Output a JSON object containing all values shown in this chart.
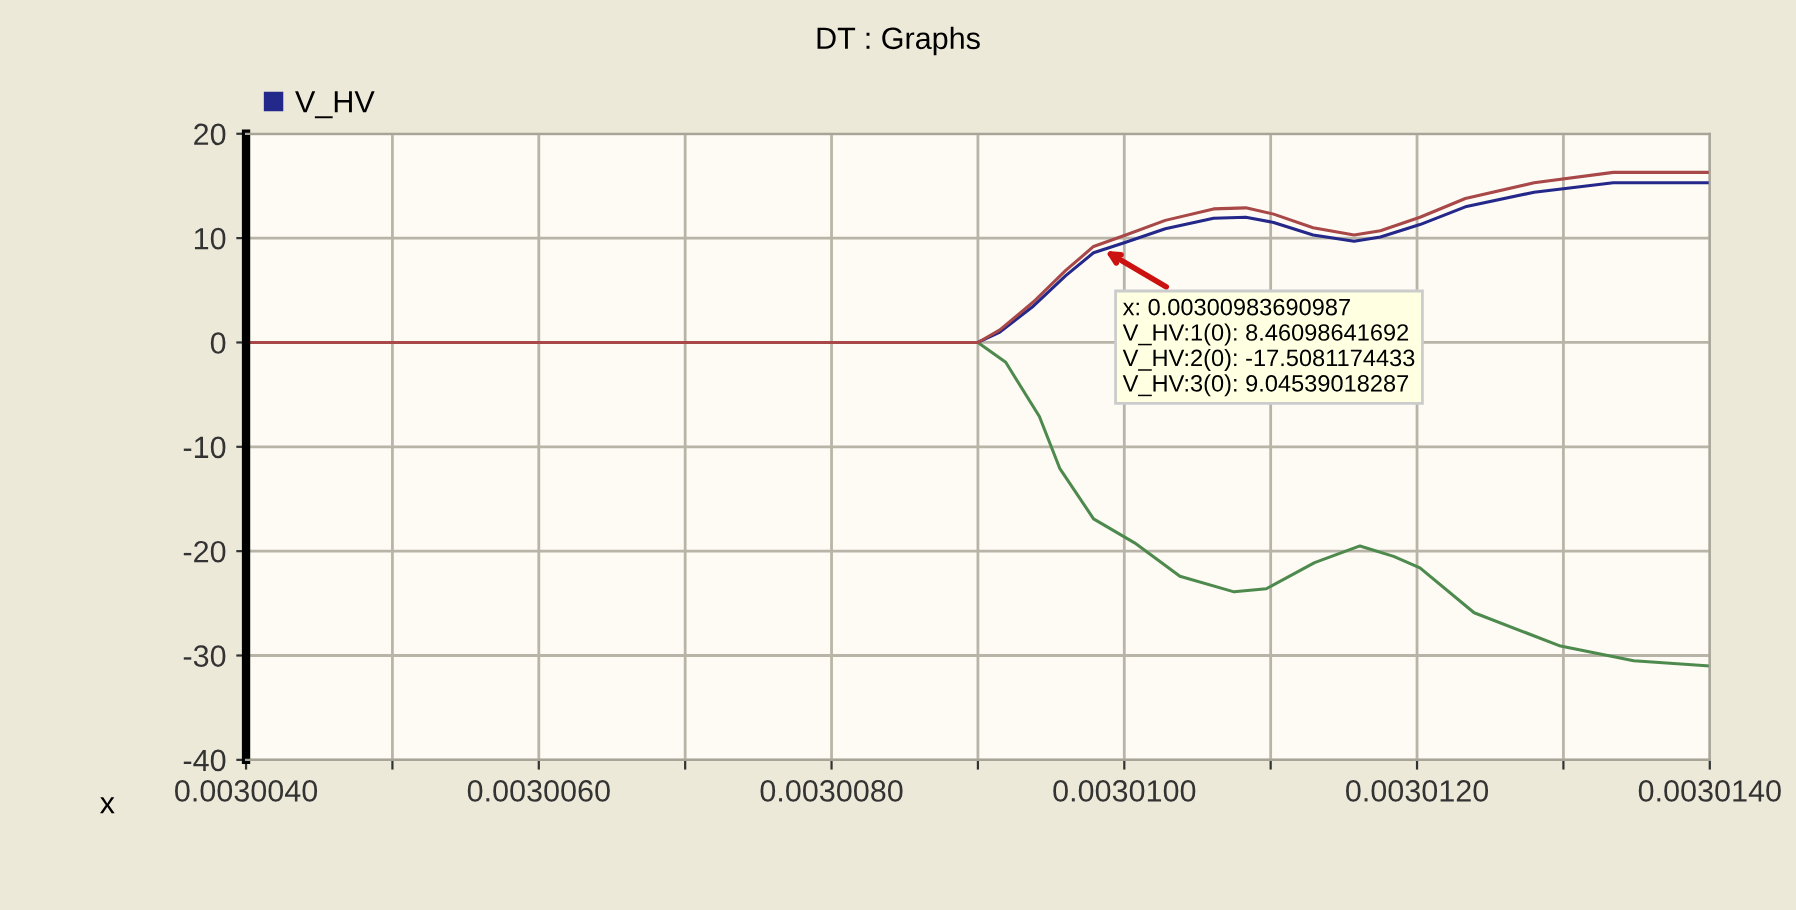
{
  "chart_data": {
    "type": "line",
    "title": "DT : Graphs",
    "xlabel": "x",
    "series": [
      {
        "name": "V_HV",
        "color": "#23288a",
        "x": [
          0.003004,
          0.003009,
          0.00300915,
          0.00300938,
          0.0030096,
          0.00300979,
          0.00301001,
          0.00301028,
          0.00301061,
          0.00301083,
          0.00301102,
          0.00301129,
          0.00301157,
          0.00301175,
          0.00301202,
          0.00301233,
          0.0030128,
          0.00301334,
          0.003014
        ],
        "values": [
          0,
          0,
          1.0,
          3.5,
          6.4,
          8.6,
          9.6,
          10.9,
          11.9,
          12.0,
          11.5,
          10.3,
          9.7,
          10.1,
          11.3,
          13.0,
          14.4,
          15.3,
          15.3
        ]
      },
      {
        "color": "#4e8a4e",
        "x": [
          0.003004,
          0.003009,
          0.00300919,
          0.00300942,
          0.00300956,
          0.00300979,
          0.00301007,
          0.00301038,
          0.00301075,
          0.00301097,
          0.0030113,
          0.00301161,
          0.00301184,
          0.00301202,
          0.00301239,
          0.00301298,
          0.00301348,
          0.003014
        ],
        "values": [
          0,
          0,
          -1.9,
          -7.1,
          -12.1,
          -16.9,
          -19.2,
          -22.4,
          -23.9,
          -23.6,
          -21.1,
          -19.5,
          -20.5,
          -21.6,
          -25.9,
          -29.1,
          -30.5,
          -31.0
        ]
      },
      {
        "color": "#a84848",
        "x": [
          0.003004,
          0.003009,
          0.00300915,
          0.00300938,
          0.0030096,
          0.00300979,
          0.00301001,
          0.00301028,
          0.00301061,
          0.00301083,
          0.00301102,
          0.00301129,
          0.00301157,
          0.00301175,
          0.00301202,
          0.00301233,
          0.0030128,
          0.00301334,
          0.003014
        ],
        "values": [
          0,
          0,
          1.2,
          3.9,
          6.9,
          9.2,
          10.3,
          11.7,
          12.8,
          12.9,
          12.3,
          11.0,
          10.3,
          10.7,
          12.0,
          13.8,
          15.3,
          16.3,
          16.3
        ]
      }
    ],
    "annotations": [
      {
        "text": "x: 0.00300983690987\nV_HV:1(0): 8.46098641692\nV_HV:2(0): -17.5081174433\nV_HV:3(0): 9.04539018287",
        "x": 0.00300983690987,
        "y": 9.04539018287
      }
    ],
    "xlim": [
      0.003004,
      0.003014
    ],
    "xticks": [
      {
        "value": 0.003004,
        "label": "0.0030040"
      },
      {
        "value": 0.003005,
        "label": null
      },
      {
        "value": 0.003006,
        "label": "0.0030060"
      },
      {
        "value": 0.003007,
        "label": null
      },
      {
        "value": 0.003008,
        "label": "0.0030080"
      },
      {
        "value": 0.003009,
        "label": null
      },
      {
        "value": 0.00301,
        "label": "0.0030100"
      },
      {
        "value": 0.003011,
        "label": null
      },
      {
        "value": 0.003012,
        "label": "0.0030120"
      },
      {
        "value": 0.003013,
        "label": null
      },
      {
        "value": 0.003014,
        "label": "0.0030140"
      }
    ],
    "ylim": [
      -40,
      20
    ],
    "yticks": [
      -40,
      -30,
      -20,
      -10,
      0,
      10,
      20
    ],
    "grid": true,
    "legend": "top left",
    "marker": "none",
    "line_style": "solid"
  }
}
